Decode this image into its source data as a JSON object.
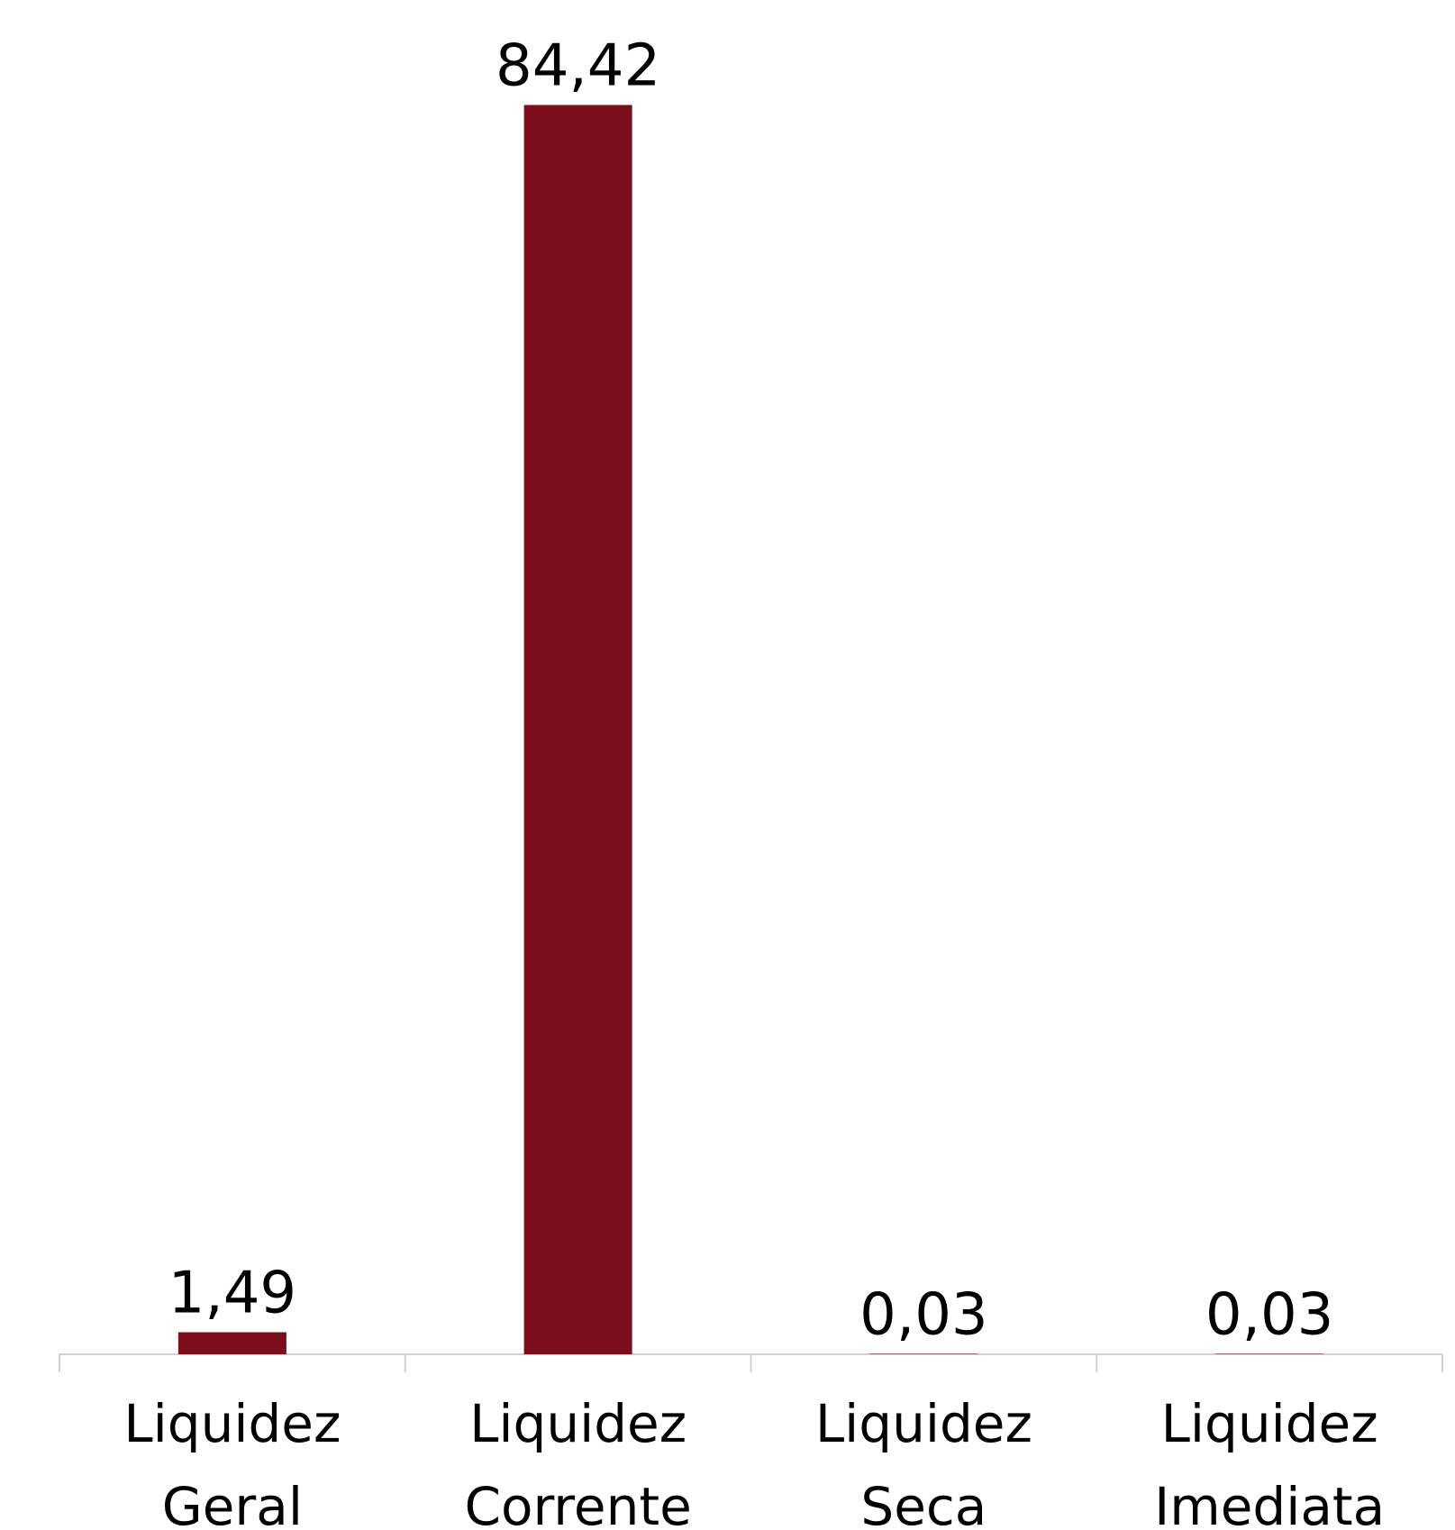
{
  "chart_data": {
    "type": "bar",
    "categories": [
      "Liquidez Geral",
      "Liquidez Corrente",
      "Liquidez Seca",
      "Liquidez Imediata"
    ],
    "values": [
      1.49,
      84.42,
      0.03,
      0.03
    ],
    "value_labels": [
      "1,49",
      "84,42",
      "0,03",
      "0,03"
    ],
    "color": "#7b0e1a",
    "ylim": [
      0,
      85
    ]
  }
}
